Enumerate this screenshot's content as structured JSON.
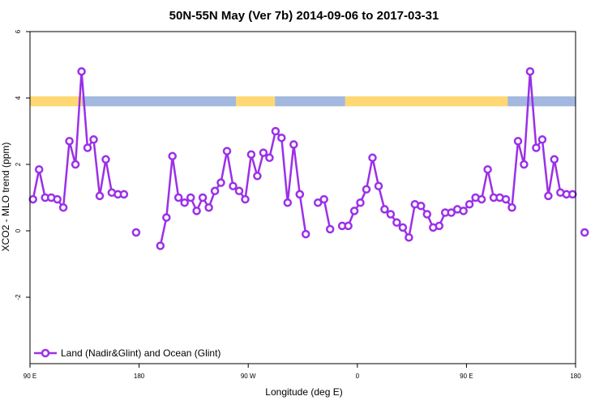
{
  "chart_data": {
    "type": "line",
    "title": "50N-55N May (Ver 7b)   2014-09-06 to 2017-03-31",
    "xlabel": "Longitude (deg E)",
    "ylabel": "XCO2 - MLO trend (ppm)",
    "xlim": [
      90,
      450
    ],
    "ylim": [
      -4,
      6
    ],
    "x_ticks": [
      {
        "value": 90,
        "label": "90 E"
      },
      {
        "value": 180,
        "label": "180"
      },
      {
        "value": 270,
        "label": "90 W"
      },
      {
        "value": 360,
        "label": "0"
      },
      {
        "value": 450,
        "label": "90 E"
      },
      {
        "value": 540,
        "label": "180"
      }
    ],
    "y_ticks": [
      {
        "value": -2,
        "label": "-2"
      },
      {
        "value": 0,
        "label": "0"
      },
      {
        "value": 2,
        "label": "2"
      },
      {
        "value": 4,
        "label": "4"
      },
      {
        "value": 6,
        "label": "6"
      }
    ],
    "grid": false,
    "legend_position": "bottom-left",
    "series": [
      {
        "name": "Land (Nadir&Glint) and Ocean (Glint)",
        "color": "#9b30e8",
        "segments": [
          {
            "x": [
              92.5,
              97.5,
              102.5,
              107.5,
              112.5,
              117.5,
              122.5,
              127.5,
              132.5,
              137.5,
              142.5,
              147.5,
              152.5,
              157.5,
              162.5,
              167.5
            ],
            "y": [
              0.95,
              1.85,
              1.0,
              1.0,
              0.95,
              0.7,
              2.7,
              2.0,
              4.8,
              2.5,
              2.75,
              1.05,
              2.15,
              1.15,
              1.1,
              null
            ]
          },
          {
            "x": [
              167.5
            ],
            "y": [
              1.1
            ]
          },
          {
            "x": [
              177.5
            ],
            "y": [
              -0.05
            ]
          },
          {
            "x": [
              197.5,
              202.5,
              207.5,
              212.5,
              217.5,
              222.5,
              227.5,
              232.5,
              237.5,
              242.5,
              247.5,
              252.5,
              257.5,
              262.5,
              267.5,
              272.5,
              277.5,
              282.5,
              287.5,
              292.5,
              297.5,
              302.5,
              307.5,
              312.5
            ],
            "y": [
              -0.45,
              0.4,
              2.25,
              1.0,
              0.85,
              1.0,
              0.6,
              1.0,
              0.7,
              1.2,
              1.45,
              2.4,
              1.35,
              1.2,
              0.95,
              2.3,
              1.65,
              2.35,
              2.2,
              3.0,
              2.8,
              0.85,
              2.6,
              1.1
            ]
          },
          {
            "x": [
              312.5,
              317.5
            ],
            "y": [
              1.1,
              -0.1
            ]
          },
          {
            "x": [
              327.5,
              332.5,
              337.5
            ],
            "y": [
              0.85,
              0.95,
              0.05
            ]
          },
          {
            "x": [
              347.5,
              352.5,
              357.5,
              362.5,
              367.5,
              372.5,
              377.5,
              382.5,
              387.5,
              392.5,
              397.5,
              402.5,
              407.5,
              412.5,
              417.5,
              422.5,
              427.5,
              432.5,
              437.5,
              442.5,
              447.5,
              452.5,
              457.5,
              462.5,
              467.5,
              472.5,
              477.5,
              482.5,
              487.5,
              492.5,
              497.5,
              502.5,
              507.5,
              512.5,
              517.5,
              522.5,
              527.5,
              532.5,
              537.5
            ],
            "y": [
              0.15,
              0.15,
              0.6,
              0.85,
              1.25,
              2.2,
              1.35,
              0.65,
              0.5,
              0.25,
              0.1,
              -0.2,
              0.8,
              0.75,
              0.5,
              0.1,
              0.15,
              0.55,
              0.55,
              0.65,
              0.6,
              0.8,
              1.0,
              0.95,
              1.85,
              1.0,
              1.0,
              0.95,
              0.7,
              2.7,
              2.0,
              4.8,
              2.5,
              2.75,
              1.05,
              2.15,
              1.15,
              1.1,
              null
            ]
          },
          {
            "x": [
              537.5
            ],
            "y": [
              1.1
            ]
          },
          {
            "x": [
              547.5
            ],
            "y": [
              -0.05
            ]
          }
        ]
      }
    ],
    "surface_band": {
      "y_range": [
        3.75,
        4.05
      ],
      "colors": {
        "land": "#ffd873",
        "ocean": "#a3b8de"
      },
      "segments": [
        {
          "type": "land",
          "from": 90,
          "to": 133
        },
        {
          "type": "ocean",
          "from": 133,
          "to": 260
        },
        {
          "type": "land",
          "from": 260,
          "to": 292
        },
        {
          "type": "ocean",
          "from": 292,
          "to": 350
        },
        {
          "type": "land",
          "from": 350,
          "to": 484
        },
        {
          "type": "ocean",
          "from": 484,
          "to": 540
        }
      ]
    }
  }
}
